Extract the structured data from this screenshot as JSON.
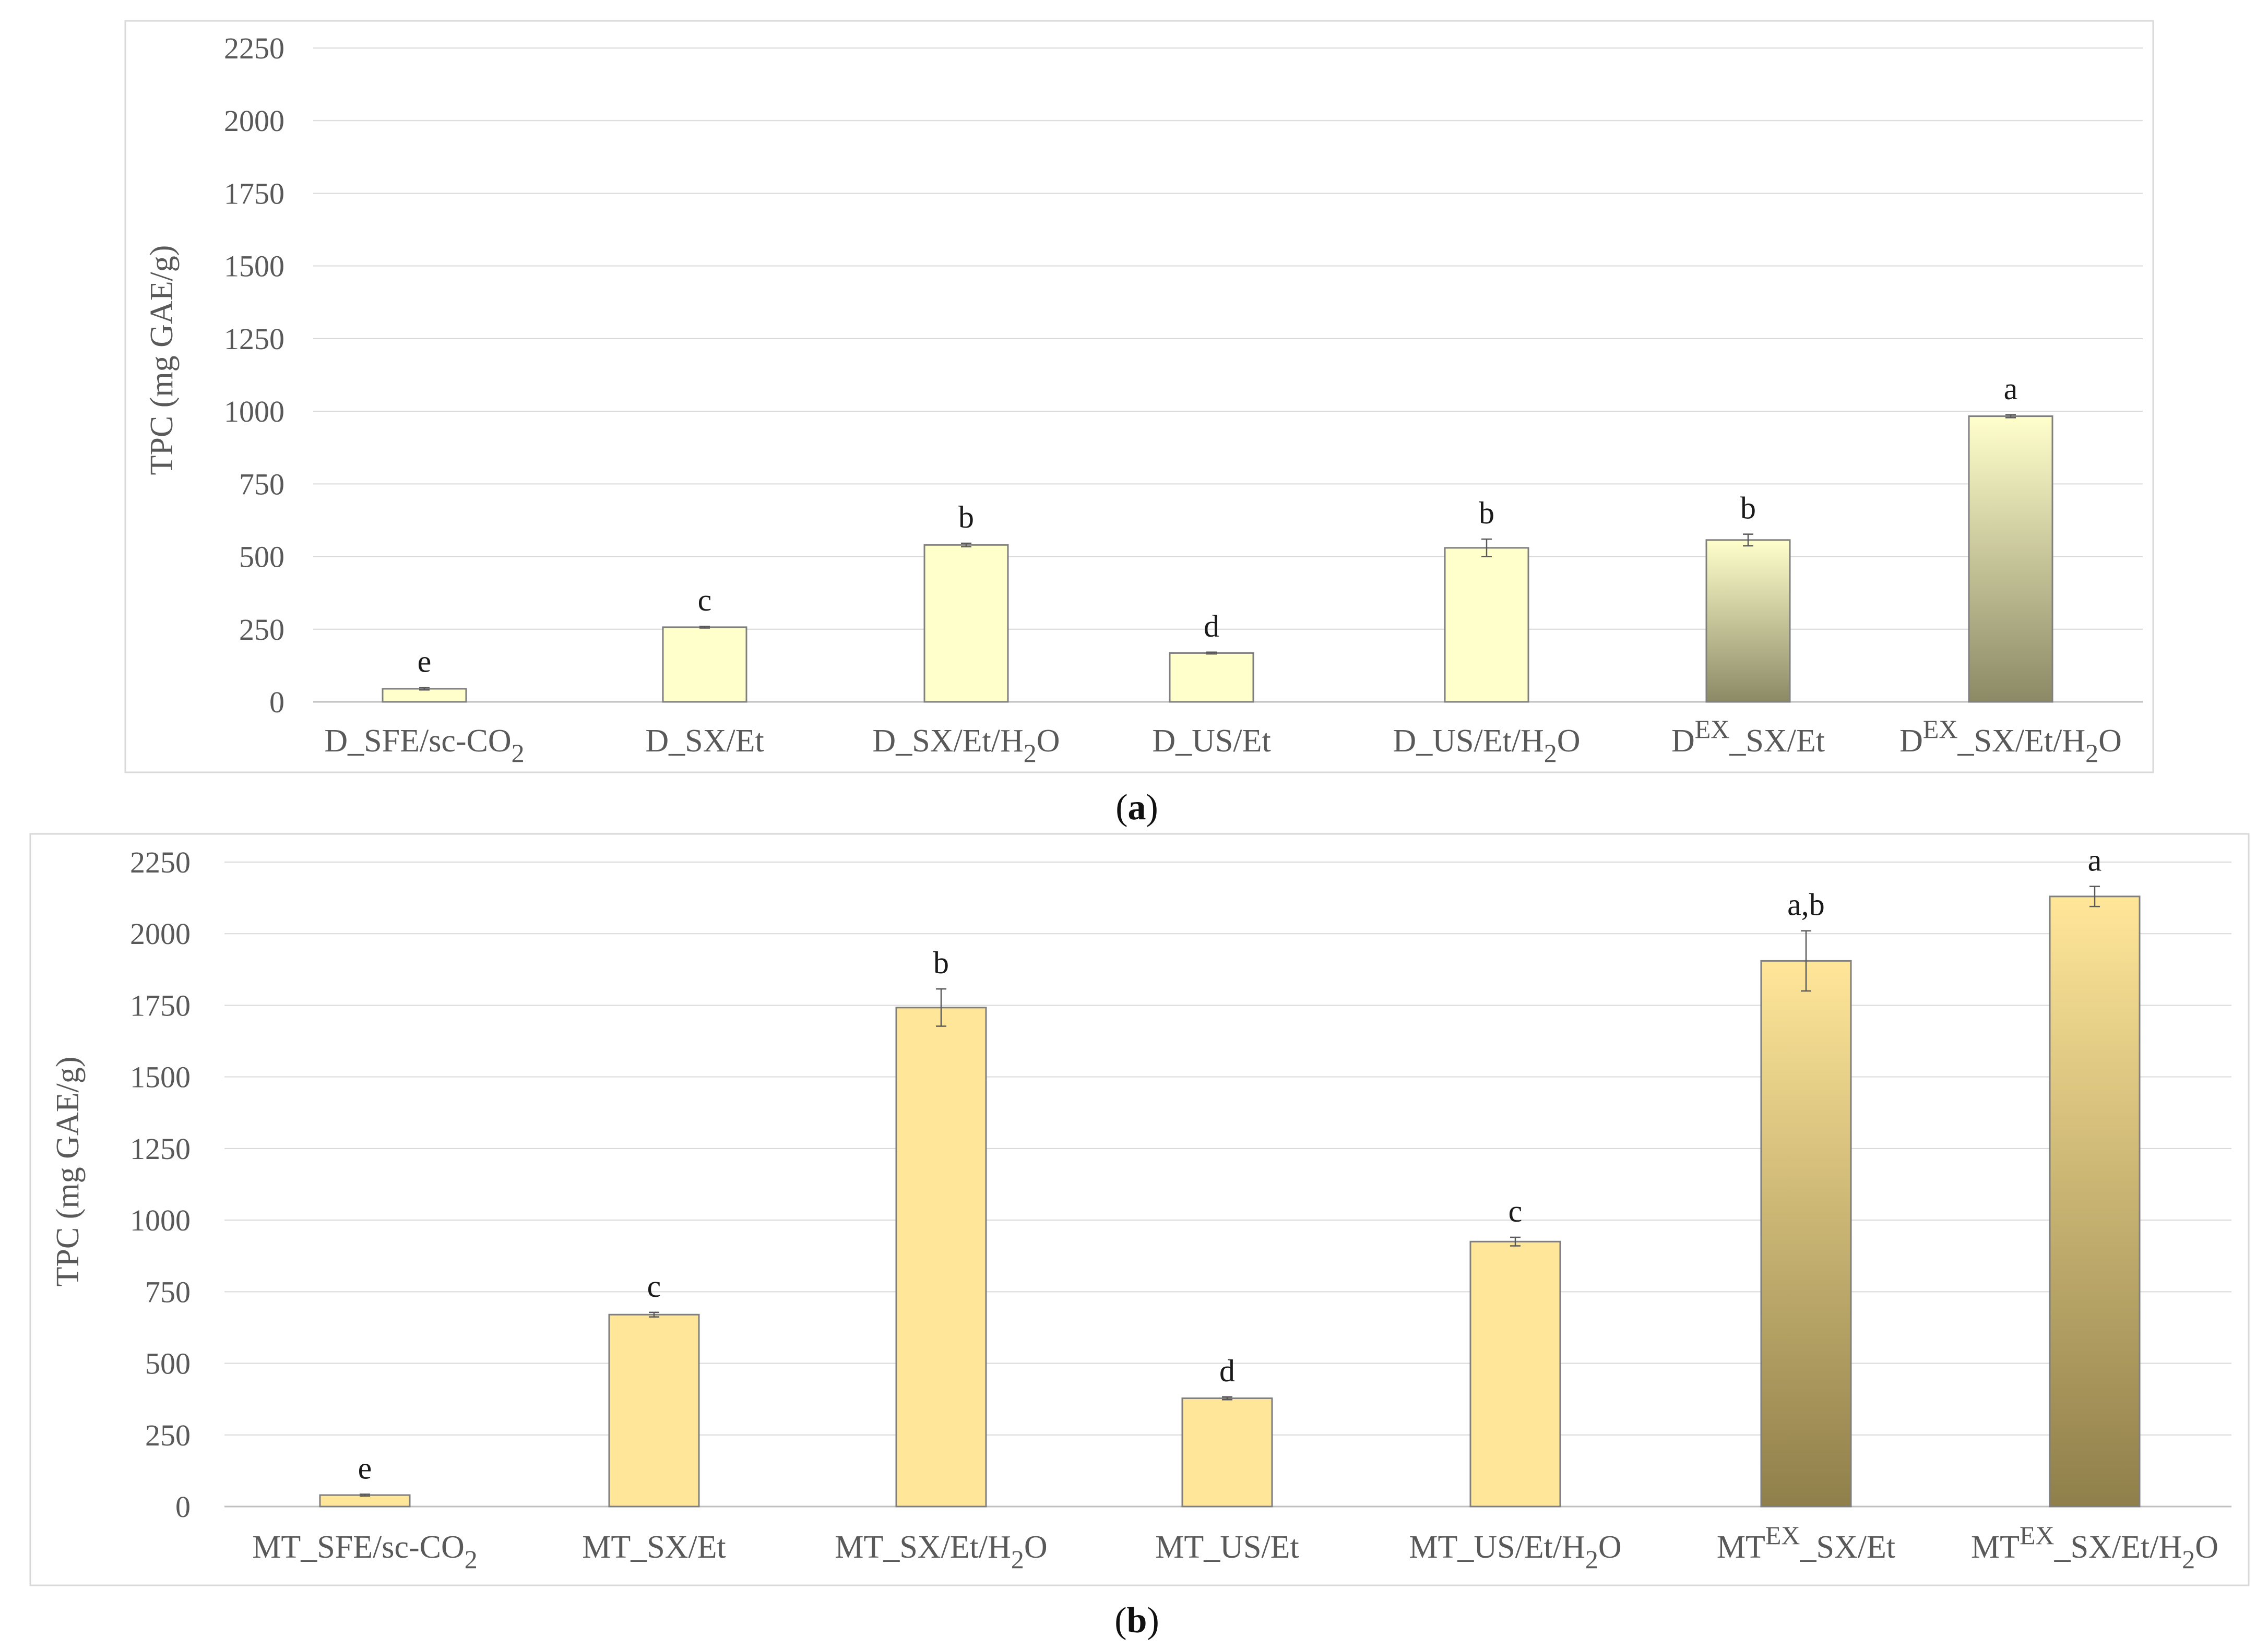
{
  "chart_data": [
    {
      "type": "bar",
      "panel": "a",
      "ylabel": "TPC (mg GAE/g)",
      "ylim": [
        0,
        2250
      ],
      "yticks": [
        "0",
        "250",
        "500",
        "750",
        "1000",
        "1250",
        "1500",
        "1750",
        "2000",
        "2250"
      ],
      "grid": true,
      "categories": [
        {
          "base": "D",
          "sup": "",
          "mid": "_SFE/sc-CO",
          "sub": "2",
          "tail": ""
        },
        {
          "base": "D",
          "sup": "",
          "mid": "_SX/Et",
          "sub": "",
          "tail": ""
        },
        {
          "base": "D",
          "sup": "",
          "mid": "_SX/Et/H",
          "sub": "2",
          "tail": "O"
        },
        {
          "base": "D",
          "sup": "",
          "mid": "_US/Et",
          "sub": "",
          "tail": ""
        },
        {
          "base": "D",
          "sup": "",
          "mid": "_US/Et/H",
          "sub": "2",
          "tail": "O"
        },
        {
          "base": "D",
          "sup": "EX",
          "mid": "_SX/Et",
          "sub": "",
          "tail": ""
        },
        {
          "base": "D",
          "sup": "EX",
          "mid": "_SX/Et/H",
          "sub": "2",
          "tail": "O"
        }
      ],
      "values": [
        45,
        257,
        540,
        168,
        530,
        557,
        983
      ],
      "errors": [
        4,
        3,
        6,
        3,
        30,
        20,
        5
      ],
      "letters": [
        "e",
        "c",
        "b",
        "d",
        "b",
        "b",
        "a"
      ],
      "gradient": [
        false,
        false,
        false,
        false,
        false,
        true,
        true
      ],
      "colors": {
        "bar": "#ffffcc",
        "bar_edge": "#7f7f7f",
        "grad_top": "#ffffcc",
        "grad_bottom": "#8c8a66"
      }
    },
    {
      "type": "bar",
      "panel": "b",
      "ylabel": "TPC (mg GAE/g)",
      "ylim": [
        0,
        2250
      ],
      "yticks": [
        "0",
        "250",
        "500",
        "750",
        "1000",
        "1250",
        "1500",
        "1750",
        "2000",
        "2250"
      ],
      "grid": true,
      "categories": [
        {
          "base": "MT",
          "sup": "",
          "mid": "_SFE/sc-CO",
          "sub": "2",
          "tail": ""
        },
        {
          "base": "MT",
          "sup": "",
          "mid": "_SX/Et",
          "sub": "",
          "tail": ""
        },
        {
          "base": "MT",
          "sup": "",
          "mid": "_SX/Et/H",
          "sub": "2",
          "tail": "O"
        },
        {
          "base": "MT",
          "sup": "",
          "mid": "_US/Et",
          "sub": "",
          "tail": ""
        },
        {
          "base": "MT",
          "sup": "",
          "mid": "_US/Et/H",
          "sub": "2",
          "tail": "O"
        },
        {
          "base": "MT",
          "sup": "EX",
          "mid": "_SX/Et",
          "sub": "",
          "tail": ""
        },
        {
          "base": "MT",
          "sup": "EX",
          "mid": "_SX/Et/H",
          "sub": "2",
          "tail": "O"
        }
      ],
      "values": [
        40,
        670,
        1742,
        378,
        925,
        1905,
        2130
      ],
      "errors": [
        3,
        8,
        65,
        5,
        15,
        105,
        35
      ],
      "letters": [
        "e",
        "c",
        "b",
        "d",
        "c",
        "a,b",
        "a"
      ],
      "gradient": [
        false,
        false,
        false,
        false,
        false,
        true,
        true
      ],
      "colors": {
        "bar": "#ffe699",
        "bar_edge": "#7f7f7f",
        "grad_top": "#ffe699",
        "grad_bottom": "#8f7f4a"
      }
    }
  ],
  "panel_labels": [
    {
      "open": "(",
      "letter": "a",
      "close": ")"
    },
    {
      "open": "(",
      "letter": "b",
      "close": ")"
    }
  ]
}
